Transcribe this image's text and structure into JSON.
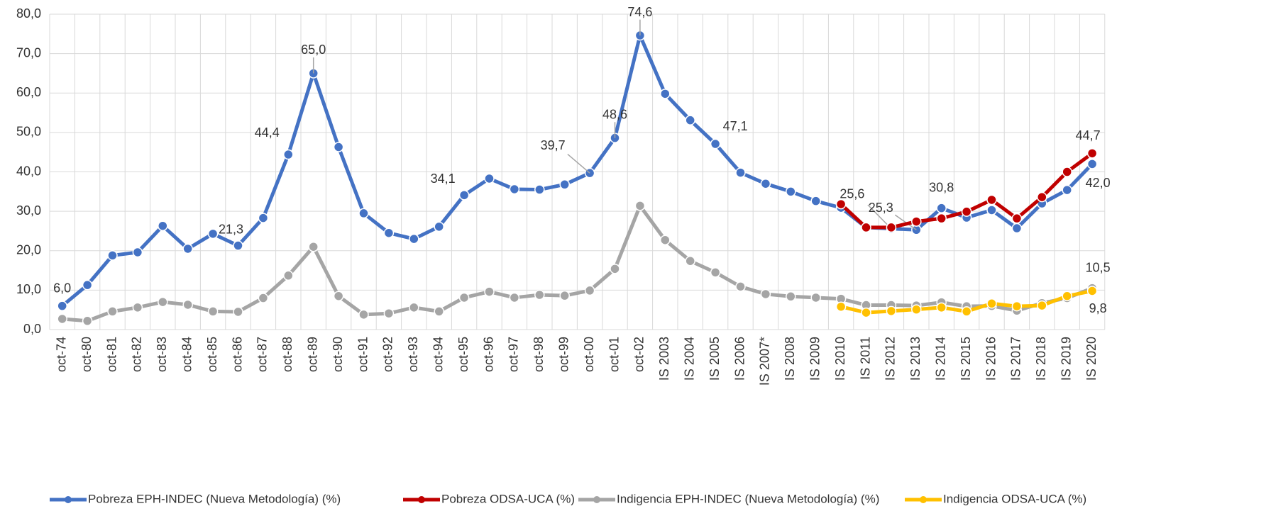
{
  "chart_data": {
    "type": "line",
    "categories": [
      "oct-74",
      "oct-80",
      "oct-81",
      "oct-82",
      "oct-83",
      "oct-84",
      "oct-85",
      "oct-86",
      "oct-87",
      "oct-88",
      "oct-89",
      "oct-90",
      "oct-91",
      "oct-92",
      "oct-93",
      "oct-94",
      "oct-95",
      "oct-96",
      "oct-97",
      "oct-98",
      "oct-99",
      "oct-00",
      "oct-01",
      "oct-02",
      "IS 2003",
      "IS 2004",
      "IS 2005",
      "IS 2006",
      "IS 2007*",
      "IS 2008",
      "IS 2009",
      "IS 2010",
      "IS 2011",
      "IS 2012",
      "IS 2013",
      "IS 2014",
      "IS 2015",
      "IS 2016",
      "IS 2017",
      "IS 2018",
      "IS 2019",
      "IS 2020"
    ],
    "ylim": [
      0,
      80
    ],
    "yticks": [
      {
        "value": 0,
        "label": "0,0"
      },
      {
        "value": 10,
        "label": "10,0"
      },
      {
        "value": 20,
        "label": "20,0"
      },
      {
        "value": 30,
        "label": "30,0"
      },
      {
        "value": 40,
        "label": "40,0"
      },
      {
        "value": 50,
        "label": "50,0"
      },
      {
        "value": 60,
        "label": "60,0"
      },
      {
        "value": 70,
        "label": "70,0"
      },
      {
        "value": 80,
        "label": "80,0"
      }
    ],
    "grid": true,
    "legend": "bottom",
    "series": [
      {
        "name": "Pobreza EPH-INDEC (Nueva Metodología) (%)",
        "color": "#4472c4",
        "values": [
          6.0,
          11.3,
          18.8,
          19.6,
          26.3,
          20.5,
          24.3,
          21.3,
          28.3,
          44.4,
          65.0,
          46.3,
          29.5,
          24.5,
          23.0,
          26.1,
          34.1,
          38.3,
          35.6,
          35.5,
          36.8,
          39.7,
          48.6,
          74.6,
          59.8,
          53.1,
          47.1,
          39.8,
          37.0,
          35.0,
          32.6,
          30.9,
          25.9,
          25.6,
          25.3,
          30.8,
          28.4,
          30.3,
          25.7,
          32.0,
          35.4,
          42.0
        ],
        "value_labels": [
          "6,0",
          null,
          null,
          null,
          null,
          null,
          null,
          "21,3",
          null,
          "44,4",
          "65,0",
          null,
          null,
          null,
          null,
          null,
          "34,1",
          null,
          null,
          null,
          null,
          "39,7",
          "48,6",
          "74,6",
          null,
          null,
          "47,1",
          null,
          null,
          null,
          null,
          null,
          null,
          "25,6",
          "25,3",
          "30,8",
          null,
          null,
          null,
          null,
          null,
          "42,0"
        ]
      },
      {
        "name": "Pobreza ODSA-UCA (%)",
        "color": "#c00000",
        "values": [
          null,
          null,
          null,
          null,
          null,
          null,
          null,
          null,
          null,
          null,
          null,
          null,
          null,
          null,
          null,
          null,
          null,
          null,
          null,
          null,
          null,
          null,
          null,
          null,
          null,
          null,
          null,
          null,
          null,
          null,
          null,
          31.8,
          25.9,
          25.9,
          27.4,
          28.2,
          29.9,
          32.9,
          28.2,
          33.6,
          40.0,
          44.7
        ],
        "value_labels": [
          null,
          null,
          null,
          null,
          null,
          null,
          null,
          null,
          null,
          null,
          null,
          null,
          null,
          null,
          null,
          null,
          null,
          null,
          null,
          null,
          null,
          null,
          null,
          null,
          null,
          null,
          null,
          null,
          null,
          null,
          null,
          null,
          null,
          null,
          null,
          null,
          null,
          null,
          null,
          null,
          null,
          "44,7"
        ]
      },
      {
        "name": "Indigencia EPH-INDEC (Nueva Metodología) (%)",
        "color": "#a5a5a5",
        "values": [
          2.7,
          2.2,
          4.6,
          5.6,
          7.0,
          6.3,
          4.6,
          4.5,
          8.0,
          13.7,
          21.0,
          8.5,
          3.8,
          4.1,
          5.6,
          4.6,
          8.1,
          9.6,
          8.1,
          8.8,
          8.6,
          9.9,
          15.4,
          31.4,
          22.7,
          17.4,
          14.5,
          10.9,
          9.0,
          8.4,
          8.1,
          7.8,
          6.2,
          6.2,
          6.1,
          6.9,
          5.9,
          6.0,
          4.8,
          6.7,
          8.0,
          10.5
        ],
        "value_labels": [
          null,
          null,
          null,
          null,
          null,
          null,
          null,
          null,
          null,
          null,
          null,
          null,
          null,
          null,
          null,
          null,
          null,
          null,
          null,
          null,
          null,
          null,
          null,
          null,
          null,
          null,
          null,
          null,
          null,
          null,
          null,
          null,
          null,
          null,
          null,
          null,
          null,
          null,
          null,
          null,
          null,
          "10,5"
        ]
      },
      {
        "name": "Indigencia ODSA-UCA (%)",
        "color": "#ffc000",
        "values": [
          null,
          null,
          null,
          null,
          null,
          null,
          null,
          null,
          null,
          null,
          null,
          null,
          null,
          null,
          null,
          null,
          null,
          null,
          null,
          null,
          null,
          null,
          null,
          null,
          null,
          null,
          null,
          null,
          null,
          null,
          null,
          5.8,
          4.3,
          4.7,
          5.1,
          5.6,
          4.6,
          6.6,
          5.9,
          6.1,
          8.5,
          9.8
        ],
        "value_labels": [
          null,
          null,
          null,
          null,
          null,
          null,
          null,
          null,
          null,
          null,
          null,
          null,
          null,
          null,
          null,
          null,
          null,
          null,
          null,
          null,
          null,
          null,
          null,
          null,
          null,
          null,
          null,
          null,
          null,
          null,
          null,
          null,
          null,
          null,
          null,
          null,
          null,
          null,
          null,
          null,
          null,
          "9,8"
        ]
      }
    ]
  }
}
